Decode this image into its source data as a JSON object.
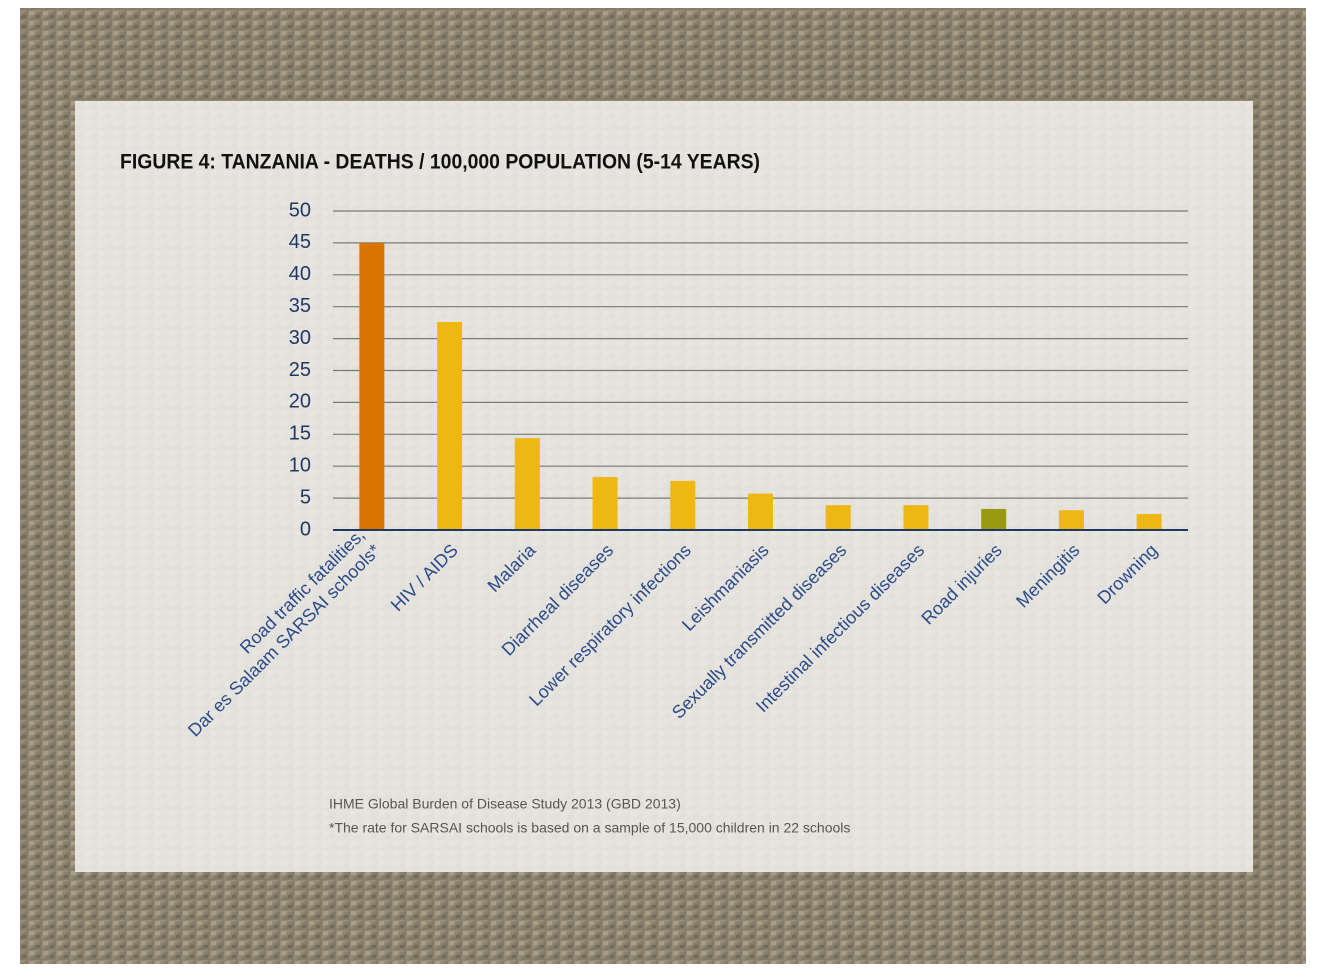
{
  "chart_data": {
    "type": "bar",
    "title": "FIGURE 4: TANZANIA - DEATHS / 100,000 POPULATION (5-14 YEARS)",
    "categories": [
      [
        "Road traffic fatalities,",
        "Dar es Salaam SARSAI schools*"
      ],
      "HIV / AIDS",
      "Malaria",
      "Diarrheal diseases",
      "Lower respiratory infections",
      "Leishmaniasis",
      "Sexually transmitted diseases",
      "Intestinal infectious diseases",
      "Road injuries",
      "Meningitis",
      "Drowning"
    ],
    "values": [
      45,
      32.6,
      14.4,
      8.3,
      7.7,
      5.7,
      3.9,
      3.9,
      3.3,
      3.1,
      2.5
    ],
    "colors": [
      "#d97400",
      "#eeb713",
      "#eeb713",
      "#eeb713",
      "#eeb713",
      "#eeb713",
      "#eeb713",
      "#eeb713",
      "#999a12",
      "#eeb713",
      "#eeb713"
    ],
    "ylim": [
      0,
      50
    ],
    "yticks": [
      0,
      5,
      10,
      15,
      20,
      25,
      30,
      35,
      40,
      45,
      50
    ],
    "grid": true,
    "notes": [
      "IHME Global Burden of Disease Study 2013 (GBD 2013)",
      "*The rate for SARSAI schools is based on a sample of 15,000 children in 22 schools"
    ]
  }
}
